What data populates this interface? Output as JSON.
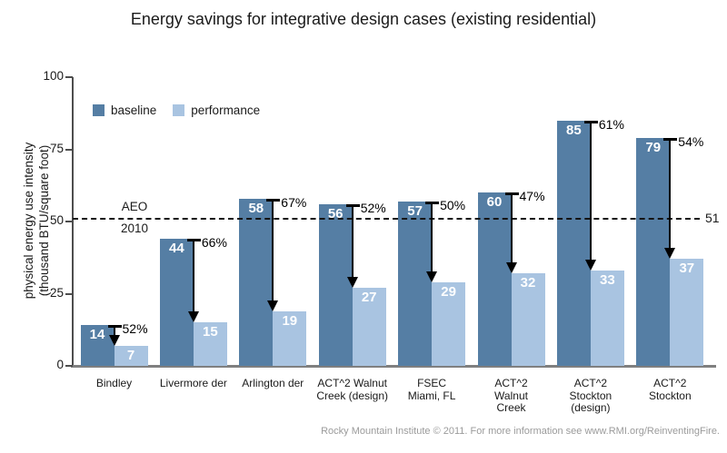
{
  "title": "Energy savings for integrative design cases (existing residential)",
  "y_axis": {
    "title_line1": "physical energy use intensity",
    "title_line2": "(thousand BTU/square foot)"
  },
  "reference_line": {
    "label_top": "AEO",
    "label_bottom": "2010",
    "value_label": "51"
  },
  "footer": "Rocky Mountain Institute © 2011. For more information see www.RMI.org/ReinventingFire.",
  "colors": {
    "baseline": "#557ea4",
    "performance": "#a9c4e1",
    "y_axis_line": "#4d4d4d",
    "x_axis_line": "#7f7f7f",
    "reference_line": "#141414",
    "arrow": "#000000",
    "bar_value_text": "#ffffff",
    "footer_text": "#9b9b9b"
  },
  "chart_data": {
    "type": "bar",
    "title": "Energy savings for integrative design cases (existing residential)",
    "ylabel": "physical energy use intensity (thousand BTU/square foot)",
    "ylim": [
      0,
      100
    ],
    "yticks": [
      0,
      25,
      50,
      75,
      100
    ],
    "grid": false,
    "legend_position": "top-left",
    "categories": [
      "Bindley",
      "Livermore der",
      "Arlington der",
      "ACT^2 Walnut Creek (design)",
      "FSEC Miami, FL",
      "ACT^2 Walnut Creek",
      "ACT^2 Stockton (design)",
      "ACT^2 Stockton"
    ],
    "category_lines": [
      [
        "Bindley"
      ],
      [
        "Livermore der"
      ],
      [
        "Arlington der"
      ],
      [
        "ACT^2 Walnut",
        "Creek (design)"
      ],
      [
        "FSEC",
        "Miami, FL"
      ],
      [
        "ACT^2",
        "Walnut",
        "Creek"
      ],
      [
        "ACT^2",
        "Stockton",
        "(design)"
      ],
      [
        "ACT^2",
        "Stockton"
      ]
    ],
    "series": [
      {
        "name": "baseline",
        "color": "#557ea4",
        "values": [
          14,
          44,
          58,
          56,
          57,
          60,
          85,
          79
        ]
      },
      {
        "name": "performance",
        "color": "#a9c4e1",
        "values": [
          7,
          15,
          19,
          27,
          29,
          32,
          33,
          37
        ]
      }
    ],
    "savings_labels": [
      "52%",
      "66%",
      "67%",
      "52%",
      "50%",
      "47%",
      "61%",
      "54%"
    ],
    "reference_line": {
      "value": 51,
      "label_left": "AEO 2010",
      "label_right": "51"
    }
  }
}
